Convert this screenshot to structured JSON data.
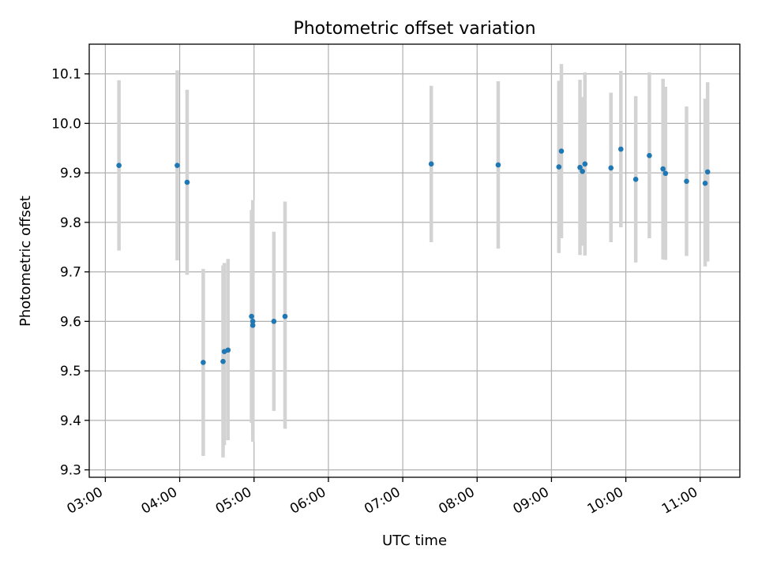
{
  "chart_data": {
    "type": "scatter",
    "title": "Photometric offset variation",
    "xlabel": "UTC time",
    "ylabel": "Photometric offset",
    "xlim": [
      "02:47",
      "11:32"
    ],
    "ylim": [
      9.285,
      10.16
    ],
    "x_ticks": [
      "03:00",
      "04:00",
      "05:00",
      "06:00",
      "07:00",
      "08:00",
      "09:00",
      "10:00",
      "11:00"
    ],
    "y_ticks": [
      9.3,
      9.4,
      9.5,
      9.6,
      9.7,
      9.8,
      9.9,
      10.0,
      10.1
    ],
    "y_tick_labels": [
      "9.3",
      "9.4",
      "9.5",
      "9.6",
      "9.7",
      "9.8",
      "9.9",
      "10.0",
      "10.1"
    ],
    "grid": true,
    "marker_color": "#1f77b4",
    "errorbar_color": "#d3d3d3",
    "points": [
      {
        "x": "03:11",
        "y": 9.915,
        "low": 9.743,
        "high": 10.087
      },
      {
        "x": "03:58",
        "y": 9.915,
        "low": 9.723,
        "high": 10.107
      },
      {
        "x": "04:06",
        "y": 9.881,
        "low": 9.694,
        "high": 10.068
      },
      {
        "x": "04:19",
        "y": 9.517,
        "low": 9.328,
        "high": 9.706
      },
      {
        "x": "04:35",
        "y": 9.519,
        "low": 9.325,
        "high": 9.713
      },
      {
        "x": "04:36",
        "y": 9.539,
        "low": 9.35,
        "high": 9.718
      },
      {
        "x": "04:39",
        "y": 9.542,
        "low": 9.36,
        "high": 9.726
      },
      {
        "x": "04:58",
        "y": 9.61,
        "low": 9.395,
        "high": 9.825
      },
      {
        "x": "04:59",
        "y": 9.6,
        "low": 9.37,
        "high": 9.845
      },
      {
        "x": "04:59",
        "y": 9.592,
        "low": 9.357,
        "high": 9.827
      },
      {
        "x": "05:16",
        "y": 9.6,
        "low": 9.419,
        "high": 9.781
      },
      {
        "x": "05:25",
        "y": 9.61,
        "low": 9.383,
        "high": 9.842
      },
      {
        "x": "07:23",
        "y": 9.918,
        "low": 9.76,
        "high": 10.076
      },
      {
        "x": "08:17",
        "y": 9.916,
        "low": 9.747,
        "high": 10.085
      },
      {
        "x": "09:06",
        "y": 9.912,
        "low": 9.738,
        "high": 10.086
      },
      {
        "x": "09:08",
        "y": 9.944,
        "low": 9.768,
        "high": 10.12
      },
      {
        "x": "09:23",
        "y": 9.911,
        "low": 9.734,
        "high": 10.088
      },
      {
        "x": "09:25",
        "y": 9.903,
        "low": 9.753,
        "high": 10.053
      },
      {
        "x": "09:27",
        "y": 9.918,
        "low": 9.733,
        "high": 10.103
      },
      {
        "x": "09:48",
        "y": 9.91,
        "low": 9.76,
        "high": 10.062
      },
      {
        "x": "09:56",
        "y": 9.948,
        "low": 9.79,
        "high": 10.106
      },
      {
        "x": "10:08",
        "y": 9.887,
        "low": 9.719,
        "high": 10.055
      },
      {
        "x": "10:19",
        "y": 9.935,
        "low": 9.768,
        "high": 10.103
      },
      {
        "x": "10:30",
        "y": 9.908,
        "low": 9.725,
        "high": 10.09
      },
      {
        "x": "10:32",
        "y": 9.899,
        "low": 9.724,
        "high": 10.074
      },
      {
        "x": "10:49",
        "y": 9.883,
        "low": 9.732,
        "high": 10.034
      },
      {
        "x": "11:04",
        "y": 9.879,
        "low": 9.711,
        "high": 10.05
      },
      {
        "x": "11:06",
        "y": 9.902,
        "low": 9.721,
        "high": 10.083
      }
    ]
  }
}
